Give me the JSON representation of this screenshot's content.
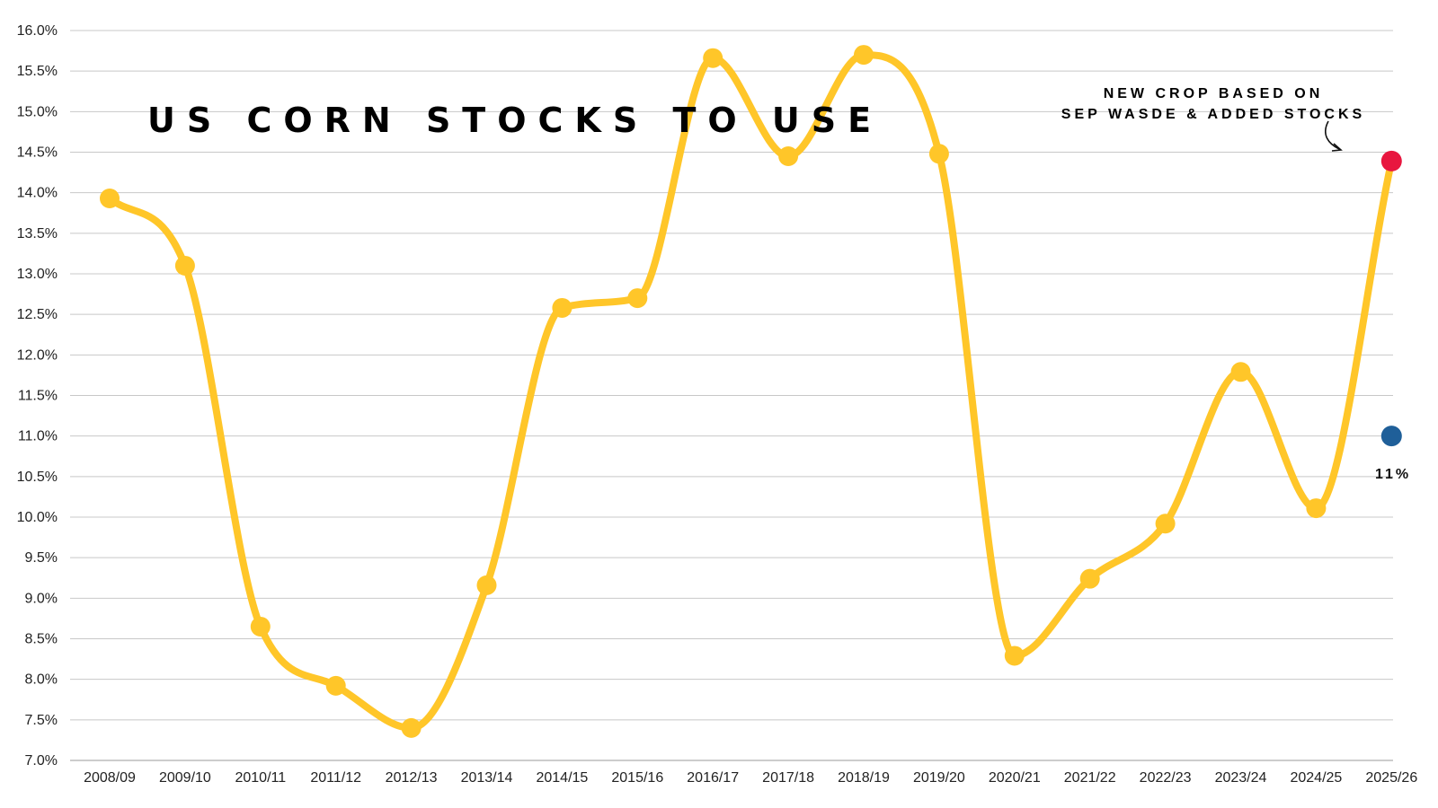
{
  "chart_data": {
    "type": "line",
    "title": "US CORN STOCKS TO USE",
    "xlabel": "",
    "ylabel": "",
    "ylim": [
      7.0,
      16.0
    ],
    "ytick_step": 0.5,
    "grid": true,
    "categories": [
      "2008/09",
      "2009/10",
      "2010/11",
      "2011/12",
      "2012/13",
      "2013/14",
      "2014/15",
      "2015/16",
      "2016/17",
      "2017/18",
      "2018/19",
      "2019/20",
      "2020/21",
      "2021/22",
      "2022/23",
      "2023/24",
      "2024/25",
      "2025/26"
    ],
    "series": [
      {
        "name": "",
        "color": "#FFC629",
        "values": [
          13.93,
          13.1,
          8.65,
          7.92,
          7.4,
          9.16,
          12.58,
          12.7,
          15.66,
          14.45,
          15.7,
          14.48,
          8.29,
          9.24,
          9.92,
          11.79,
          10.11,
          14.39
        ]
      }
    ],
    "highlight_points": [
      {
        "category": "2025/26",
        "value": 14.39,
        "color": "#E8163F",
        "label": ""
      },
      {
        "category": "2025/26",
        "value": 11.0,
        "color": "#1F5F99",
        "label": "11%"
      }
    ],
    "annotation": {
      "line1": "NEW CROP BASED ON",
      "line2": "SEP WASDE & ADDED STOCKS"
    }
  }
}
